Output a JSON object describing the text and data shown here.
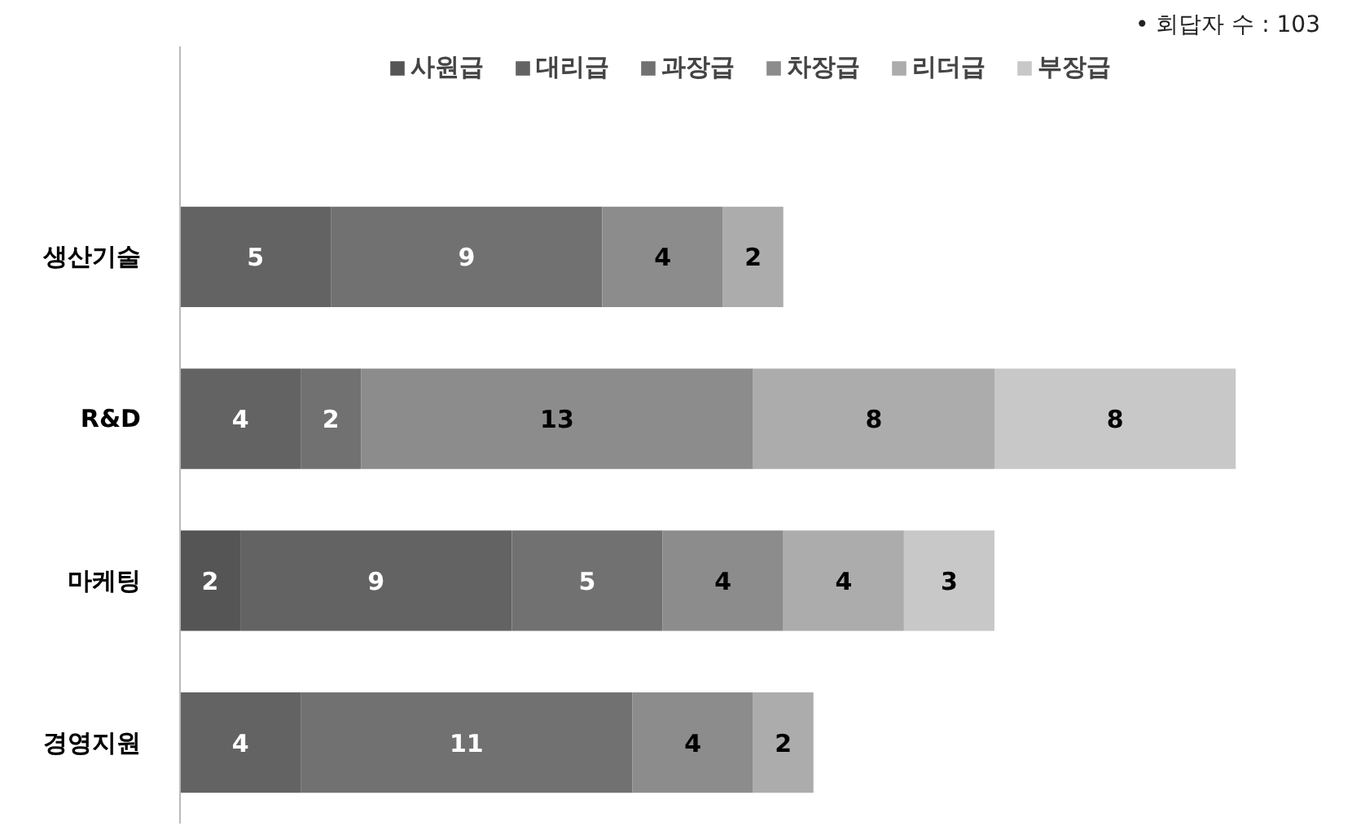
{
  "chart_data": {
    "type": "bar",
    "orientation": "horizontal",
    "stacked": true,
    "data_labels": true,
    "grid": false,
    "legend": "top",
    "tick_labels": "y",
    "categories": [
      "생산기술",
      "R&D",
      "마케팅",
      "경영지원"
    ],
    "series": [
      {
        "name": "사원급",
        "color": "#555555",
        "values": [
          null,
          null,
          2,
          null
        ]
      },
      {
        "name": "대리급",
        "color": "#636363",
        "values": [
          5,
          4,
          9,
          4
        ]
      },
      {
        "name": "과장급",
        "color": "#717171",
        "values": [
          9,
          2,
          5,
          11
        ]
      },
      {
        "name": "차장급",
        "color": "#8c8c8c",
        "values": [
          4,
          13,
          4,
          4
        ]
      },
      {
        "name": "리더급",
        "color": "#acacac",
        "values": [
          2,
          8,
          4,
          2
        ]
      },
      {
        "name": "부장급",
        "color": "#c8c8c8",
        "values": [
          null,
          8,
          3,
          null
        ]
      }
    ],
    "annotations": [
      "• 회답자 수 : 103"
    ]
  }
}
